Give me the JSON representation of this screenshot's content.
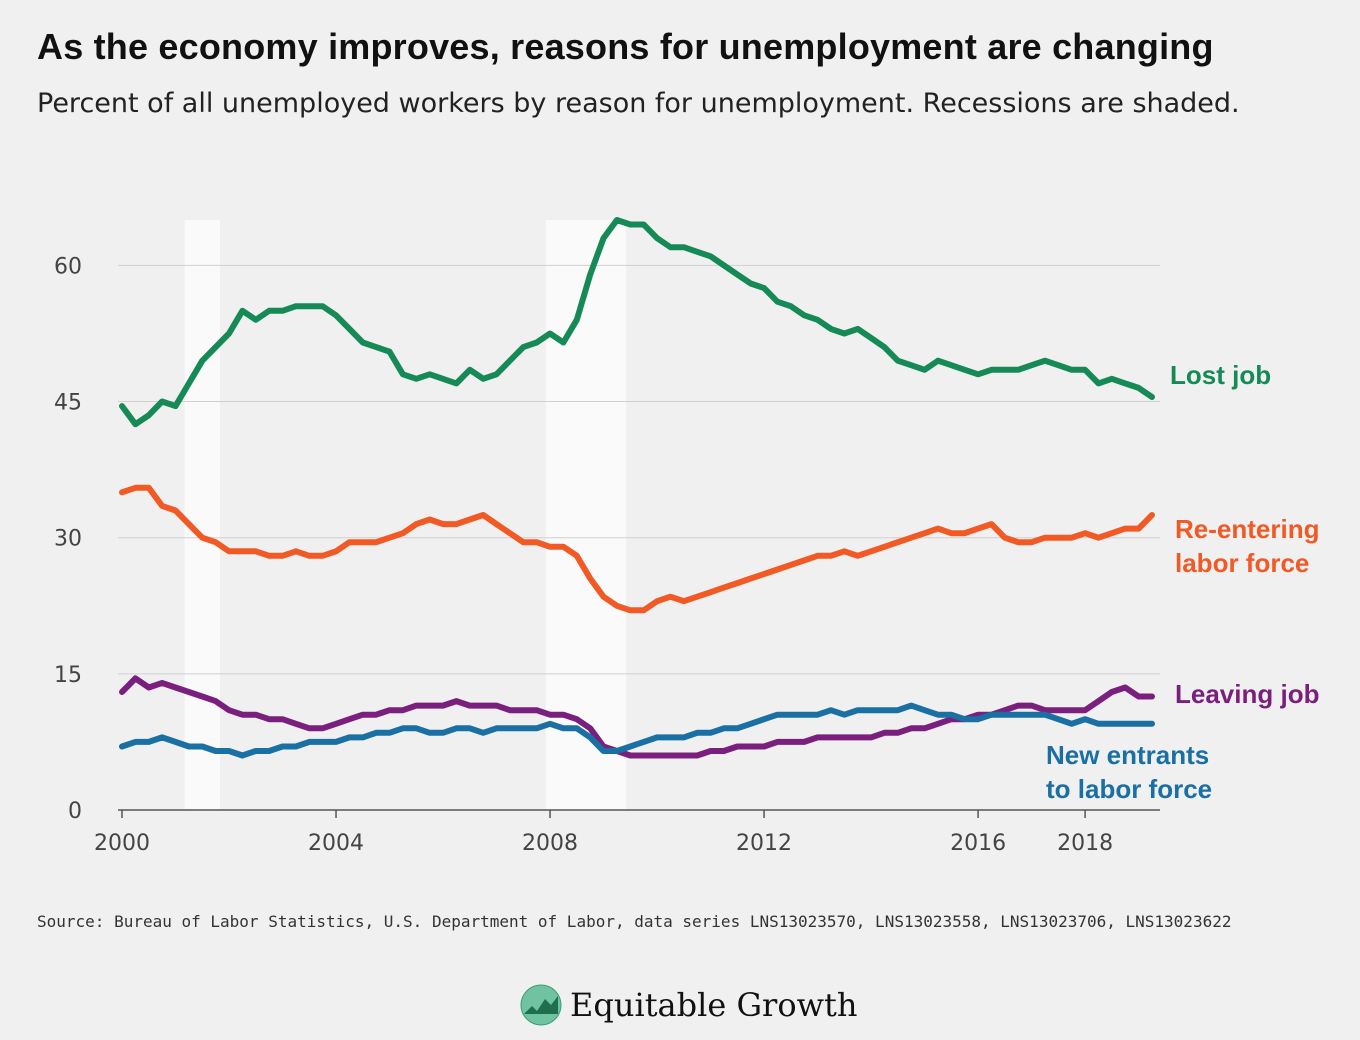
{
  "header": {
    "title": "As the economy improves, reasons for unemployment are changing",
    "subtitle": "Percent of all unemployed workers by reason for unemployment. Recessions are shaded."
  },
  "footer": {
    "source": "Source: Bureau of Labor Statistics, U.S. Department of Labor, data series LNS13023570, LNS13023558, LNS13023706, LNS13023622",
    "brand": "Equitable Growth",
    "brand_icon": "equitable-growth-logo-icon"
  },
  "chart_data": {
    "type": "line",
    "xlim": [
      2000,
      2019.4
    ],
    "ylim": [
      0,
      65
    ],
    "yticks": [
      0,
      15,
      30,
      45,
      60
    ],
    "xticks": [
      2000,
      2004,
      2008,
      2012,
      2016,
      2018
    ],
    "ytick_labels": [
      "0",
      "15",
      "30",
      "45",
      "60"
    ],
    "xtick_labels": [
      "2000",
      "2004",
      "2008",
      "2012",
      "2016",
      "2018"
    ],
    "grid": "horizontal",
    "recessions": [
      [
        2001.17,
        2001.83
      ],
      [
        2007.92,
        2009.42
      ]
    ],
    "series": [
      {
        "name": "Lost job",
        "label_lines": [
          "Lost job"
        ],
        "color": "#168a56",
        "x": [
          2000,
          2000.25,
          2000.5,
          2000.75,
          2001,
          2001.25,
          2001.5,
          2001.75,
          2002,
          2002.25,
          2002.5,
          2002.75,
          2003,
          2003.25,
          2003.5,
          2003.75,
          2004,
          2004.25,
          2004.5,
          2004.75,
          2005,
          2005.25,
          2005.5,
          2005.75,
          2006,
          2006.25,
          2006.5,
          2006.75,
          2007,
          2007.25,
          2007.5,
          2007.75,
          2008,
          2008.25,
          2008.5,
          2008.75,
          2009,
          2009.25,
          2009.5,
          2009.75,
          2010,
          2010.25,
          2010.5,
          2010.75,
          2011,
          2011.25,
          2011.5,
          2011.75,
          2012,
          2012.25,
          2012.5,
          2012.75,
          2013,
          2013.25,
          2013.5,
          2013.75,
          2014,
          2014.25,
          2014.5,
          2014.75,
          2015,
          2015.25,
          2015.5,
          2015.75,
          2016,
          2016.25,
          2016.5,
          2016.75,
          2017,
          2017.25,
          2017.5,
          2017.75,
          2018,
          2018.25,
          2018.5,
          2018.75,
          2019,
          2019.25
        ],
        "values": [
          44.5,
          42.5,
          43.5,
          45,
          44.5,
          47,
          49.5,
          51,
          52.5,
          55,
          54,
          55,
          55,
          55.5,
          55.5,
          55.5,
          54.5,
          53,
          51.5,
          51,
          50.5,
          48,
          47.5,
          48,
          47.5,
          47,
          48.5,
          47.5,
          48,
          49.5,
          51,
          51.5,
          52.5,
          51.5,
          54,
          59,
          63,
          65,
          64.5,
          64.5,
          63,
          62,
          62,
          61.5,
          61,
          60,
          59,
          58,
          57.5,
          56,
          55.5,
          54.5,
          54,
          53,
          52.5,
          53,
          52,
          51,
          49.5,
          49,
          48.5,
          49.5,
          49,
          48.5,
          48,
          48.5,
          48.5,
          48.5,
          49,
          49.5,
          49,
          48.5,
          48.5,
          47,
          47.5,
          47,
          46.5,
          45.5
        ]
      },
      {
        "name": "Re-entering labor force",
        "label_lines": [
          "Re-entering",
          "labor force"
        ],
        "color": "#f15a24",
        "x": [
          2000,
          2000.25,
          2000.5,
          2000.75,
          2001,
          2001.25,
          2001.5,
          2001.75,
          2002,
          2002.25,
          2002.5,
          2002.75,
          2003,
          2003.25,
          2003.5,
          2003.75,
          2004,
          2004.25,
          2004.5,
          2004.75,
          2005,
          2005.25,
          2005.5,
          2005.75,
          2006,
          2006.25,
          2006.5,
          2006.75,
          2007,
          2007.25,
          2007.5,
          2007.75,
          2008,
          2008.25,
          2008.5,
          2008.75,
          2009,
          2009.25,
          2009.5,
          2009.75,
          2010,
          2010.25,
          2010.5,
          2010.75,
          2011,
          2011.25,
          2011.5,
          2011.75,
          2012,
          2012.25,
          2012.5,
          2012.75,
          2013,
          2013.25,
          2013.5,
          2013.75,
          2014,
          2014.25,
          2014.5,
          2014.75,
          2015,
          2015.25,
          2015.5,
          2015.75,
          2016,
          2016.25,
          2016.5,
          2016.75,
          2017,
          2017.25,
          2017.5,
          2017.75,
          2018,
          2018.25,
          2018.5,
          2018.75,
          2019,
          2019.25
        ],
        "values": [
          35,
          35.5,
          35.5,
          33.5,
          33,
          31.5,
          30,
          29.5,
          28.5,
          28.5,
          28.5,
          28,
          28,
          28.5,
          28,
          28,
          28.5,
          29.5,
          29.5,
          29.5,
          30,
          30.5,
          31.5,
          32,
          31.5,
          31.5,
          32,
          32.5,
          31.5,
          30.5,
          29.5,
          29.5,
          29,
          29,
          28,
          25.5,
          23.5,
          22.5,
          22,
          22,
          23,
          23.5,
          23,
          23.5,
          24,
          24.5,
          25,
          25.5,
          26,
          26.5,
          27,
          27.5,
          28,
          28,
          28.5,
          28,
          28.5,
          29,
          29.5,
          30,
          30.5,
          31,
          30.5,
          30.5,
          31,
          31.5,
          30,
          29.5,
          29.5,
          30,
          30,
          30,
          30.5,
          30,
          30.5,
          31,
          31,
          32.5
        ]
      },
      {
        "name": "Leaving job",
        "label_lines": [
          "Leaving job"
        ],
        "color": "#7b1f7e",
        "x": [
          2000,
          2000.25,
          2000.5,
          2000.75,
          2001,
          2001.25,
          2001.5,
          2001.75,
          2002,
          2002.25,
          2002.5,
          2002.75,
          2003,
          2003.25,
          2003.5,
          2003.75,
          2004,
          2004.25,
          2004.5,
          2004.75,
          2005,
          2005.25,
          2005.5,
          2005.75,
          2006,
          2006.25,
          2006.5,
          2006.75,
          2007,
          2007.25,
          2007.5,
          2007.75,
          2008,
          2008.25,
          2008.5,
          2008.75,
          2009,
          2009.25,
          2009.5,
          2009.75,
          2010,
          2010.25,
          2010.5,
          2010.75,
          2011,
          2011.25,
          2011.5,
          2011.75,
          2012,
          2012.25,
          2012.5,
          2012.75,
          2013,
          2013.25,
          2013.5,
          2013.75,
          2014,
          2014.25,
          2014.5,
          2014.75,
          2015,
          2015.25,
          2015.5,
          2015.75,
          2016,
          2016.25,
          2016.5,
          2016.75,
          2017,
          2017.25,
          2017.5,
          2017.75,
          2018,
          2018.25,
          2018.5,
          2018.75,
          2019,
          2019.25
        ],
        "values": [
          13,
          14.5,
          13.5,
          14,
          13.5,
          13,
          12.5,
          12,
          11,
          10.5,
          10.5,
          10,
          10,
          9.5,
          9,
          9,
          9.5,
          10,
          10.5,
          10.5,
          11,
          11,
          11.5,
          11.5,
          11.5,
          12,
          11.5,
          11.5,
          11.5,
          11,
          11,
          11,
          10.5,
          10.5,
          10,
          9,
          7,
          6.5,
          6,
          6,
          6,
          6,
          6,
          6,
          6.5,
          6.5,
          7,
          7,
          7,
          7.5,
          7.5,
          7.5,
          8,
          8,
          8,
          8,
          8,
          8.5,
          8.5,
          9,
          9,
          9.5,
          10,
          10,
          10.5,
          10.5,
          11,
          11.5,
          11.5,
          11,
          11,
          11,
          11,
          12,
          13,
          13.5,
          12.5,
          12.5
        ]
      },
      {
        "name": "New entrants to labor force",
        "label_lines": [
          "New entrants",
          "to labor force"
        ],
        "color": "#1a6fa3",
        "x": [
          2000,
          2000.25,
          2000.5,
          2000.75,
          2001,
          2001.25,
          2001.5,
          2001.75,
          2002,
          2002.25,
          2002.5,
          2002.75,
          2003,
          2003.25,
          2003.5,
          2003.75,
          2004,
          2004.25,
          2004.5,
          2004.75,
          2005,
          2005.25,
          2005.5,
          2005.75,
          2006,
          2006.25,
          2006.5,
          2006.75,
          2007,
          2007.25,
          2007.5,
          2007.75,
          2008,
          2008.25,
          2008.5,
          2008.75,
          2009,
          2009.25,
          2009.5,
          2009.75,
          2010,
          2010.25,
          2010.5,
          2010.75,
          2011,
          2011.25,
          2011.5,
          2011.75,
          2012,
          2012.25,
          2012.5,
          2012.75,
          2013,
          2013.25,
          2013.5,
          2013.75,
          2014,
          2014.25,
          2014.5,
          2014.75,
          2015,
          2015.25,
          2015.5,
          2015.75,
          2016,
          2016.25,
          2016.5,
          2016.75,
          2017,
          2017.25,
          2017.5,
          2017.75,
          2018,
          2018.25,
          2018.5,
          2018.75,
          2019,
          2019.25
        ],
        "values": [
          7,
          7.5,
          7.5,
          8,
          7.5,
          7,
          7,
          6.5,
          6.5,
          6,
          6.5,
          6.5,
          7,
          7,
          7.5,
          7.5,
          7.5,
          8,
          8,
          8.5,
          8.5,
          9,
          9,
          8.5,
          8.5,
          9,
          9,
          8.5,
          9,
          9,
          9,
          9,
          9.5,
          9,
          9,
          8,
          6.5,
          6.5,
          7,
          7.5,
          8,
          8,
          8,
          8.5,
          8.5,
          9,
          9,
          9.5,
          10,
          10.5,
          10.5,
          10.5,
          10.5,
          11,
          10.5,
          11,
          11,
          11,
          11,
          11.5,
          11,
          10.5,
          10.5,
          10,
          10,
          10.5,
          10.5,
          10.5,
          10.5,
          10.5,
          10,
          9.5,
          10,
          9.5,
          9.5,
          9.5,
          9.5,
          9.5
        ]
      }
    ]
  }
}
